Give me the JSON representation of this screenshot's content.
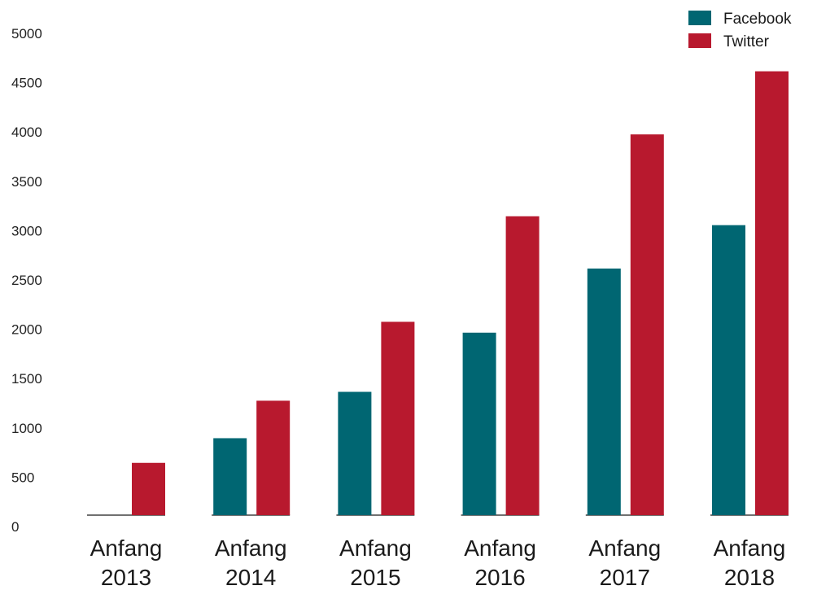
{
  "chart_data": {
    "type": "bar",
    "categories": [
      [
        "Anfang",
        "2013"
      ],
      [
        "Anfang",
        "2014"
      ],
      [
        "Anfang",
        "2015"
      ],
      [
        "Anfang",
        "2016"
      ],
      [
        "Anfang",
        "2017"
      ],
      [
        "Anfang",
        "2018"
      ]
    ],
    "series": [
      {
        "name": "Facebook",
        "color": "#006672",
        "values": [
          0,
          780,
          1250,
          1850,
          2500,
          2940
        ]
      },
      {
        "name": "Twitter",
        "color": "#b8192e",
        "values": [
          530,
          1160,
          1960,
          3030,
          3860,
          4500
        ]
      }
    ],
    "yticks": [
      0,
      500,
      1000,
      1500,
      2000,
      2500,
      3000,
      3500,
      4000,
      4500,
      5000
    ],
    "ylim": [
      0,
      5000
    ],
    "title": "",
    "xlabel": "",
    "ylabel": "",
    "grid": false,
    "legend_position": "top-right"
  }
}
